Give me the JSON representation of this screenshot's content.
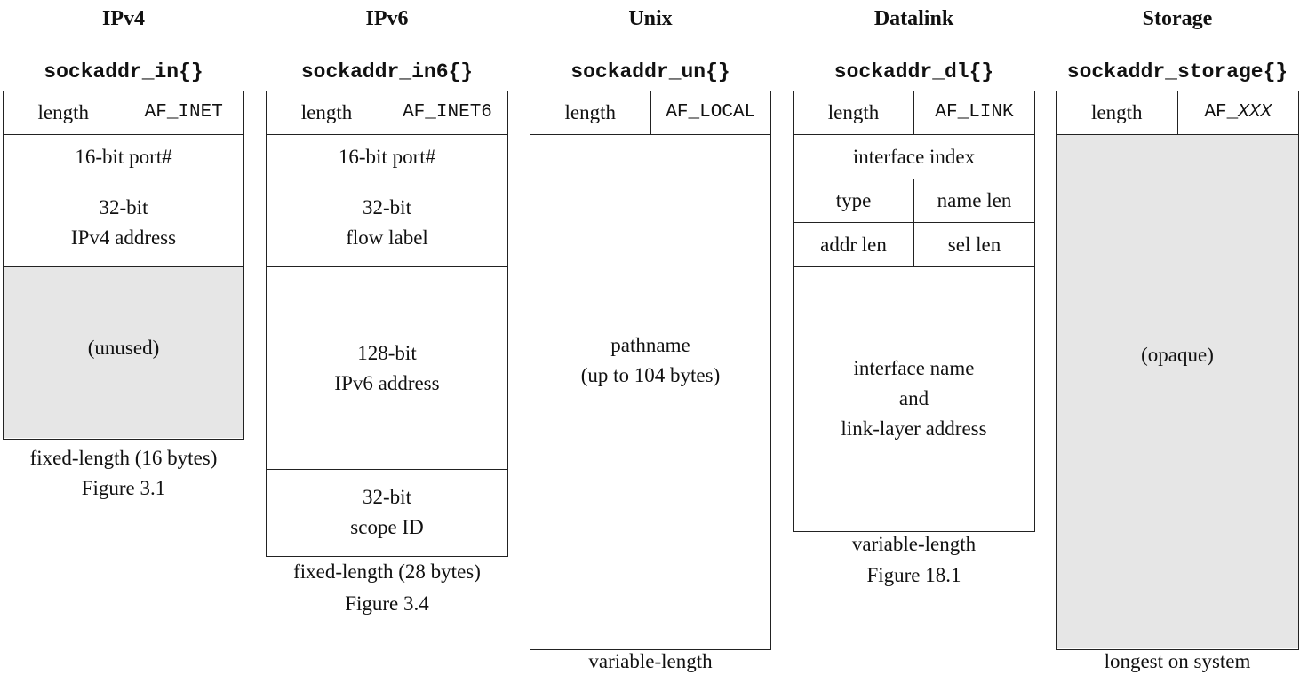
{
  "columns": [
    {
      "family": "IPv4",
      "struct": "sockaddr_in{}",
      "length_label": "length",
      "af_label": "AF_INET",
      "fields": [
        "16-bit port#",
        "32-bit",
        "IPv4 address",
        "(unused)"
      ],
      "captions": [
        "fixed-length (16 bytes)",
        "Figure 3.1"
      ]
    },
    {
      "family": "IPv6",
      "struct": "sockaddr_in6{}",
      "length_label": "length",
      "af_label": "AF_INET6",
      "fields": [
        "16-bit port#",
        "32-bit",
        "flow label",
        "128-bit",
        "IPv6 address",
        "32-bit",
        "scope ID"
      ],
      "captions": [
        "fixed-length (28 bytes)",
        "Figure 3.4"
      ]
    },
    {
      "family": "Unix",
      "struct": "sockaddr_un{}",
      "length_label": "length",
      "af_label": "AF_LOCAL",
      "fields": [
        "pathname",
        "(up to 104 bytes)"
      ],
      "captions": [
        "variable-length"
      ]
    },
    {
      "family": "Datalink",
      "struct": "sockaddr_dl{}",
      "length_label": "length",
      "af_label": "AF_LINK",
      "fields": [
        "interface index",
        "type",
        "name len",
        "addr len",
        "sel len",
        "interface name",
        "and",
        "link-layer address"
      ],
      "captions": [
        "variable-length",
        "Figure 18.1"
      ]
    },
    {
      "family": "Storage",
      "struct": "sockaddr_storage{}",
      "length_label": "length",
      "af_prefix": "AF_",
      "af_suffix": "XXX",
      "fields": [
        "(opaque)"
      ],
      "captions": [
        "longest on system"
      ]
    }
  ],
  "colors": {
    "border": "#222222",
    "shaded": "#e6e6e6"
  }
}
